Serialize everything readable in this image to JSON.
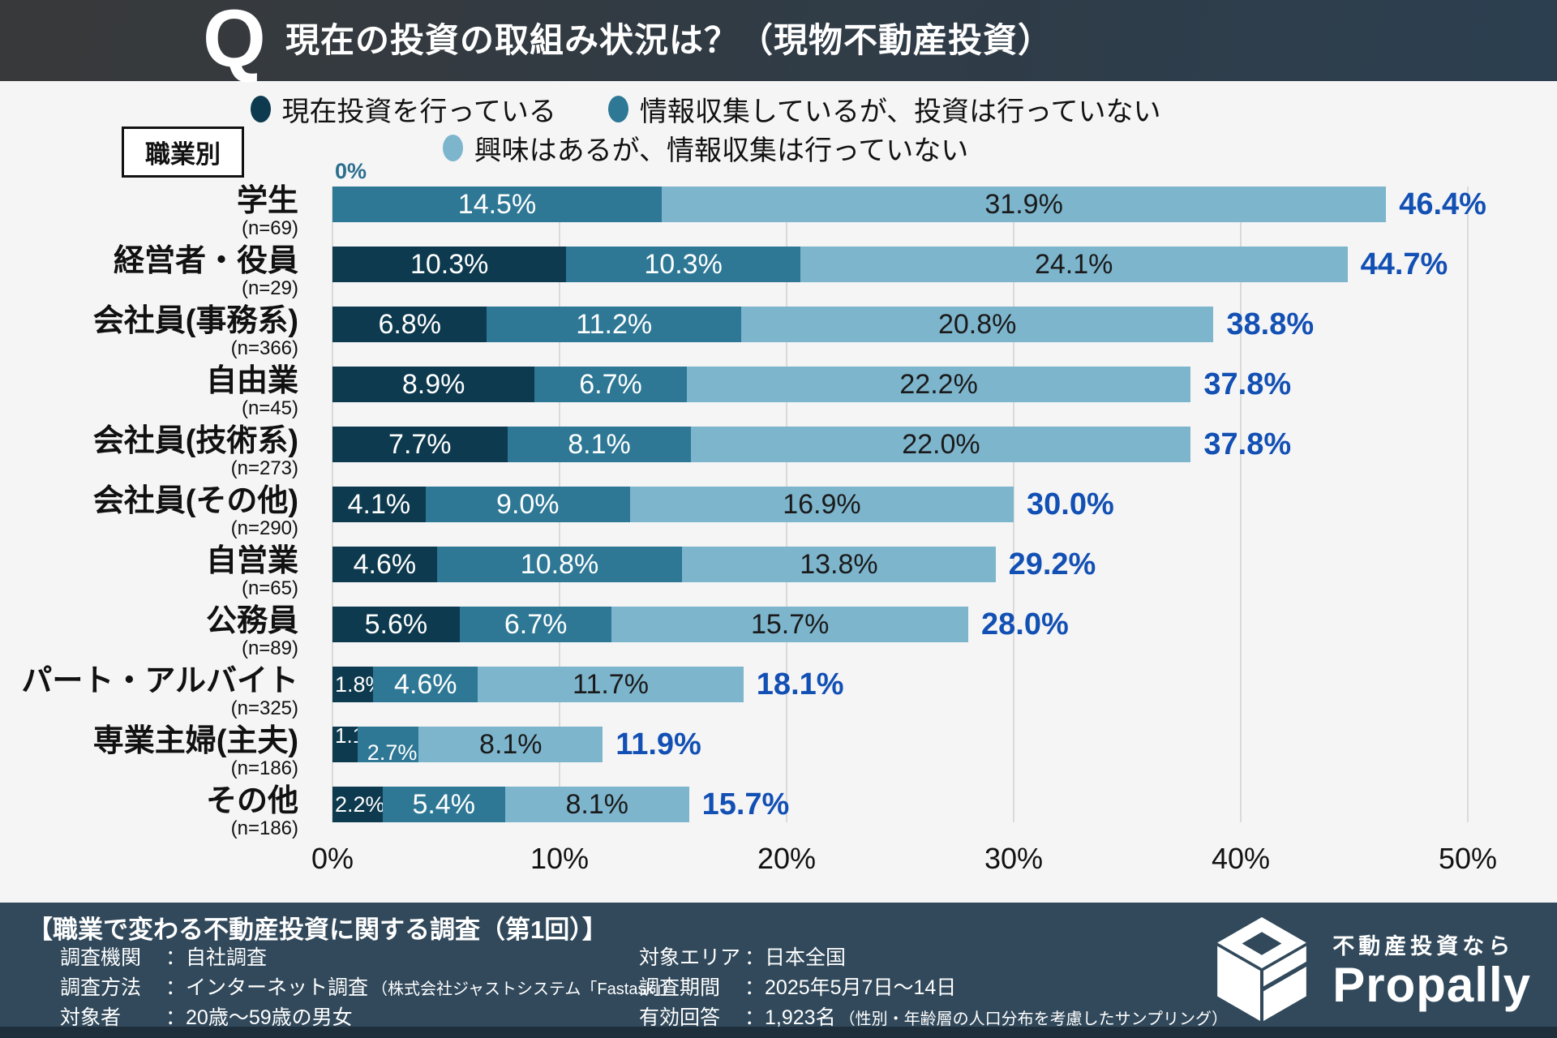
{
  "header": {
    "q_mark": "Q",
    "title": "現在の投資の取組み状況は？（現物不動産投資）"
  },
  "group_box_label": "職業別",
  "zero_note": "0%",
  "legend": {
    "items": [
      {
        "label": "現在投資を行っている",
        "color": "#0d3a4f"
      },
      {
        "label": "情報収集しているが、投資は行っていない",
        "color": "#2e7896"
      },
      {
        "label": "興味はあるが、情報収集は行っていない",
        "color": "#7db5cd"
      }
    ]
  },
  "chart_data": {
    "type": "bar",
    "stacked": true,
    "orientation": "horizontal",
    "title": "現在の投資の取組み状況は？（現物不動産投資）",
    "group_by": "職業別",
    "xlim": [
      0,
      50
    ],
    "x_ticks": [
      "0%",
      "10%",
      "20%",
      "30%",
      "40%",
      "50%"
    ],
    "grid": true,
    "categories": [
      "学生",
      "経営者・役員",
      "会社員(事務系)",
      "自由業",
      "会社員(技術系)",
      "会社員(その他)",
      "自営業",
      "公務員",
      "パート・アルバイト",
      "専業主婦(主夫)",
      "その他"
    ],
    "sample_sizes": [
      "(n=69)",
      "(n=29)",
      "(n=366)",
      "(n=45)",
      "(n=273)",
      "(n=290)",
      "(n=65)",
      "(n=89)",
      "(n=325)",
      "(n=186)",
      "(n=186)"
    ],
    "series": [
      {
        "name": "現在投資を行っている",
        "color": "#0d3a4f",
        "values": [
          0,
          10.3,
          6.8,
          8.9,
          7.7,
          4.1,
          4.6,
          5.6,
          1.8,
          1.1,
          2.2
        ]
      },
      {
        "name": "情報収集しているが、投資は行っていない",
        "color": "#2e7896",
        "values": [
          14.5,
          10.3,
          11.2,
          6.7,
          8.1,
          9.0,
          10.8,
          6.7,
          4.6,
          2.7,
          5.4
        ]
      },
      {
        "name": "興味はあるが、情報収集は行っていない",
        "color": "#7db5cd",
        "values": [
          31.9,
          24.1,
          20.8,
          22.2,
          22.0,
          16.9,
          13.8,
          15.7,
          11.7,
          8.1,
          8.1
        ]
      }
    ],
    "totals": [
      46.4,
      44.7,
      38.8,
      37.8,
      37.8,
      30.0,
      29.2,
      28.0,
      18.1,
      11.9,
      15.7
    ],
    "total_color": "#1350b4"
  },
  "footer": {
    "survey_title": "【職業で変わる不動産投資に関する調査（第1回）】",
    "left_rows": [
      {
        "label": "調査機関",
        "colon": "：",
        "value": "自社調査",
        "note": ""
      },
      {
        "label": "調査方法",
        "colon": "：",
        "value": "インターネット調査",
        "note": "（株式会社ジャストシステム「Fastask」）"
      },
      {
        "label": "対象者",
        "colon": "：",
        "value": "20歳〜59歳の男女",
        "note": ""
      }
    ],
    "right_rows": [
      {
        "label": "対象エリア",
        "colon": "：",
        "value": "日本全国",
        "note": ""
      },
      {
        "label": "調査期間",
        "colon": "：",
        "value": "2025年5月7日〜14日",
        "note": ""
      },
      {
        "label": "有効回答",
        "colon": "：",
        "value": "1,923名",
        "note": "（性別・年齢層の人口分布を考慮したサンプリング）"
      }
    ],
    "logo": {
      "tagline": "不動産投資なら",
      "brand": "Propally"
    }
  }
}
